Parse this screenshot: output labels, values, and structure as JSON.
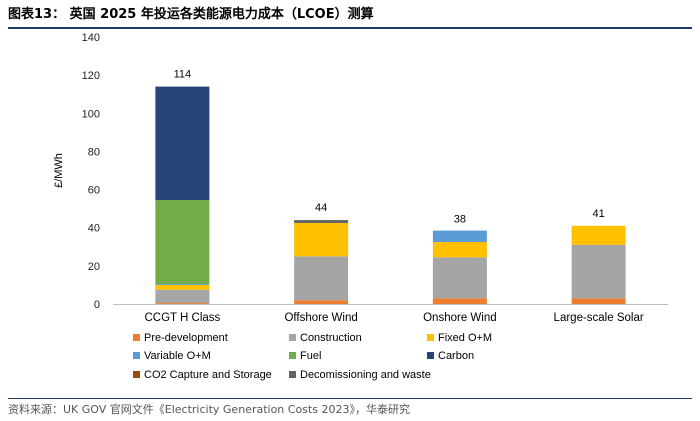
{
  "header": {
    "title": "图表13：  英国 2025 年投运各类能源电力成本（LCOE）测算"
  },
  "source": {
    "text": "资料来源：UK GOV 官网文件《Electricity Generation Costs 2023》，华泰研究"
  },
  "chart_data": {
    "type": "bar",
    "stacked": true,
    "title": "",
    "xlabel": "",
    "ylabel": "£/MWh",
    "ylim": [
      0,
      140
    ],
    "yticks": [
      0,
      20,
      40,
      60,
      80,
      100,
      120,
      140
    ],
    "grid": false,
    "legend_position": "bottom",
    "categories": [
      "CCGT H Class",
      "Offshore Wind",
      "Onshore Wind",
      "Large-scale Solar"
    ],
    "totals": [
      114,
      44,
      38,
      41
    ],
    "series": [
      {
        "name": "Pre-development",
        "color": "#ed7d31",
        "values": [
          0.5,
          2,
          3,
          3
        ]
      },
      {
        "name": "Construction",
        "color": "#a5a5a5",
        "values": [
          7,
          23,
          21.5,
          28
        ]
      },
      {
        "name": "Fixed O+M",
        "color": "#ffc000",
        "values": [
          2.5,
          17.5,
          8,
          10
        ]
      },
      {
        "name": "Variable O+M",
        "color": "#5b9bd5",
        "values": [
          0.5,
          0,
          6,
          0
        ]
      },
      {
        "name": "Fuel",
        "color": "#70ad47",
        "values": [
          44,
          0,
          0,
          0
        ]
      },
      {
        "name": "Carbon",
        "color": "#264478",
        "values": [
          59.5,
          0,
          0,
          0
        ]
      },
      {
        "name": "CO2 Capture and Storage",
        "color": "#9e480e",
        "values": [
          0,
          0,
          0,
          0
        ]
      },
      {
        "name": "Decomissioning and waste",
        "color": "#636363",
        "values": [
          0,
          1.5,
          0,
          0
        ]
      }
    ]
  }
}
